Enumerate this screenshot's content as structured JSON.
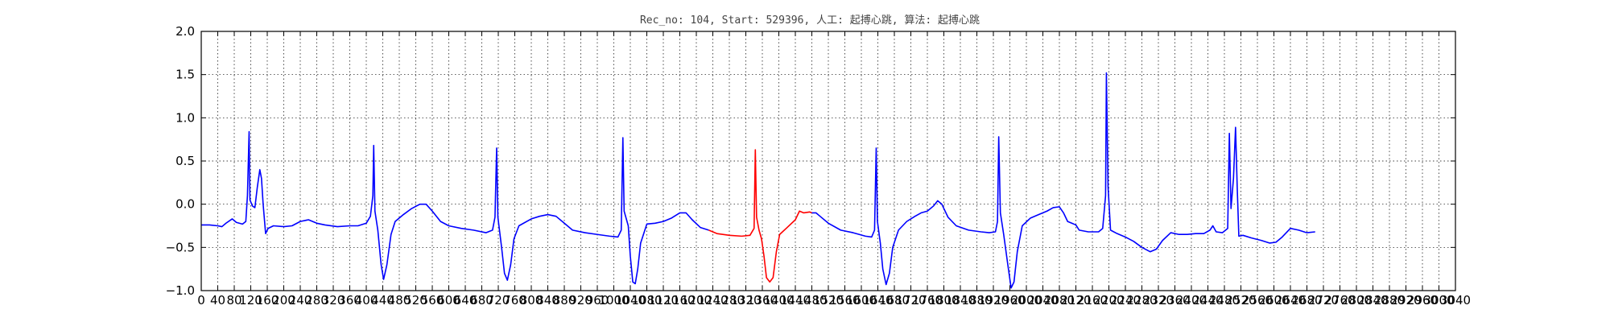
{
  "chart_data": {
    "type": "line",
    "title": "Rec_no: 104, Start: 529396, 人工: 起搏心跳, 算法: 起搏心跳",
    "xlabel": "",
    "ylabel": "",
    "xlim": [
      0,
      3040
    ],
    "ylim": [
      -1.0,
      2.0
    ],
    "grid": true,
    "y_ticks": [
      -1.0,
      -0.5,
      0.0,
      0.5,
      1.0,
      1.5,
      2.0
    ],
    "y_tick_labels": [
      "−1.0",
      "−0.5",
      "0.0",
      "0.5",
      "1.0",
      "1.5",
      "2.0"
    ],
    "x_ticks": [
      0,
      40,
      80,
      120,
      160,
      200,
      240,
      280,
      320,
      360,
      400,
      440,
      480,
      520,
      560,
      600,
      640,
      680,
      720,
      760,
      800,
      840,
      880,
      920,
      960,
      1000,
      1040,
      1080,
      1120,
      1160,
      1200,
      1240,
      1280,
      1320,
      1360,
      1400,
      1440,
      1480,
      1520,
      1560,
      1600,
      1640,
      1680,
      1720,
      1760,
      1800,
      1840,
      1880,
      1920,
      1960,
      2000,
      2040,
      2080,
      2120,
      2160,
      2200,
      2240,
      2280,
      2320,
      2360,
      2400,
      2440,
      2480,
      2520,
      2560,
      2600,
      2640,
      2680,
      2720,
      2760,
      2800,
      2840,
      2880,
      2920,
      2960,
      3000,
      3040
    ],
    "x_tick_labels": [
      "0",
      "40",
      "80",
      "120",
      "160",
      "200",
      "240",
      "280",
      "320",
      "360",
      "400",
      "440",
      "480",
      "520",
      "560",
      "600",
      "640",
      "680",
      "720",
      "760",
      "800",
      "840",
      "880",
      "920",
      "960",
      "1000",
      "1040",
      "1080",
      "1120",
      "1160",
      "1200",
      "1240",
      "1280",
      "1320",
      "1360",
      "1400",
      "1440",
      "1480",
      "1520",
      "1560",
      "1600",
      "1640",
      "1680",
      "1720",
      "1760",
      "1800",
      "1840",
      "1880",
      "1920",
      "1960",
      "2000",
      "2040",
      "2080",
      "2120",
      "2160",
      "2200",
      "2240",
      "2280",
      "2320",
      "2360",
      "2400",
      "2440",
      "2480",
      "2520",
      "2560",
      "2600",
      "2640",
      "2680",
      "2720",
      "2760",
      "2800",
      "2840",
      "2880",
      "2920",
      "2960",
      "3000",
      "3040"
    ],
    "series": [
      {
        "color": "#0000ff",
        "points": [
          [
            0,
            -0.24
          ],
          [
            20,
            -0.24
          ],
          [
            40,
            -0.25
          ],
          [
            50,
            -0.26
          ],
          [
            60,
            -0.22
          ],
          [
            75,
            -0.17
          ],
          [
            85,
            -0.21
          ],
          [
            100,
            -0.23
          ],
          [
            108,
            -0.2
          ],
          [
            112,
            0.1
          ],
          [
            116,
            0.84
          ],
          [
            118,
            0.05
          ],
          [
            124,
            -0.02
          ],
          [
            130,
            -0.04
          ],
          [
            136,
            0.2
          ],
          [
            142,
            0.4
          ],
          [
            146,
            0.3
          ],
          [
            150,
            0.0
          ],
          [
            156,
            -0.34
          ],
          [
            162,
            -0.28
          ],
          [
            175,
            -0.25
          ],
          [
            200,
            -0.26
          ],
          [
            220,
            -0.25
          ],
          [
            240,
            -0.2
          ],
          [
            260,
            -0.18
          ],
          [
            280,
            -0.22
          ],
          [
            300,
            -0.24
          ],
          [
            330,
            -0.26
          ],
          [
            360,
            -0.25
          ],
          [
            380,
            -0.25
          ],
          [
            400,
            -0.22
          ],
          [
            410,
            -0.14
          ],
          [
            416,
            0.1
          ],
          [
            418,
            0.68
          ],
          [
            421,
            -0.08
          ],
          [
            428,
            -0.3
          ],
          [
            436,
            -0.7
          ],
          [
            442,
            -0.87
          ],
          [
            450,
            -0.7
          ],
          [
            460,
            -0.35
          ],
          [
            470,
            -0.2
          ],
          [
            490,
            -0.12
          ],
          [
            510,
            -0.05
          ],
          [
            530,
            0.0
          ],
          [
            545,
            0.0
          ],
          [
            560,
            -0.08
          ],
          [
            580,
            -0.2
          ],
          [
            600,
            -0.25
          ],
          [
            630,
            -0.28
          ],
          [
            660,
            -0.3
          ],
          [
            690,
            -0.33
          ],
          [
            706,
            -0.3
          ],
          [
            712,
            -0.15
          ],
          [
            716,
            0.65
          ],
          [
            719,
            -0.15
          ],
          [
            728,
            -0.5
          ],
          [
            735,
            -0.8
          ],
          [
            742,
            -0.88
          ],
          [
            750,
            -0.7
          ],
          [
            758,
            -0.4
          ],
          [
            770,
            -0.25
          ],
          [
            800,
            -0.17
          ],
          [
            820,
            -0.14
          ],
          [
            840,
            -0.12
          ],
          [
            860,
            -0.14
          ],
          [
            880,
            -0.22
          ],
          [
            900,
            -0.3
          ],
          [
            930,
            -0.33
          ],
          [
            960,
            -0.35
          ],
          [
            990,
            -0.37
          ],
          [
            1010,
            -0.38
          ],
          [
            1018,
            -0.3
          ],
          [
            1022,
            0.77
          ],
          [
            1025,
            -0.08
          ],
          [
            1035,
            -0.25
          ],
          [
            1040,
            -0.6
          ],
          [
            1046,
            -0.9
          ],
          [
            1052,
            -0.92
          ],
          [
            1058,
            -0.75
          ],
          [
            1065,
            -0.45
          ],
          [
            1080,
            -0.23
          ],
          [
            1100,
            -0.22
          ],
          [
            1120,
            -0.2
          ],
          [
            1140,
            -0.16
          ],
          [
            1160,
            -0.1
          ],
          [
            1175,
            -0.1
          ],
          [
            1190,
            -0.18
          ],
          [
            1210,
            -0.27
          ],
          [
            1230,
            -0.3
          ]
        ]
      },
      {
        "color": "#ff0000",
        "points": [
          [
            1230,
            -0.3
          ],
          [
            1250,
            -0.34
          ],
          [
            1280,
            -0.36
          ],
          [
            1310,
            -0.37
          ],
          [
            1330,
            -0.36
          ],
          [
            1340,
            -0.28
          ],
          [
            1343,
            0.63
          ],
          [
            1346,
            -0.15
          ],
          [
            1352,
            -0.3
          ],
          [
            1358,
            -0.4
          ],
          [
            1364,
            -0.6
          ],
          [
            1370,
            -0.85
          ],
          [
            1378,
            -0.9
          ],
          [
            1386,
            -0.85
          ],
          [
            1394,
            -0.55
          ],
          [
            1402,
            -0.35
          ],
          [
            1420,
            -0.27
          ],
          [
            1440,
            -0.18
          ],
          [
            1450,
            -0.08
          ],
          [
            1460,
            -0.1
          ],
          [
            1475,
            -0.09
          ],
          [
            1480,
            -0.1
          ]
        ]
      },
      {
        "color": "#0000ff",
        "points": [
          [
            1480,
            -0.1
          ],
          [
            1490,
            -0.1
          ],
          [
            1500,
            -0.14
          ],
          [
            1520,
            -0.22
          ],
          [
            1550,
            -0.3
          ],
          [
            1580,
            -0.33
          ],
          [
            1610,
            -0.37
          ],
          [
            1625,
            -0.38
          ],
          [
            1632,
            -0.3
          ],
          [
            1636,
            0.65
          ],
          [
            1639,
            -0.2
          ],
          [
            1646,
            -0.45
          ],
          [
            1652,
            -0.75
          ],
          [
            1660,
            -0.93
          ],
          [
            1668,
            -0.8
          ],
          [
            1676,
            -0.5
          ],
          [
            1690,
            -0.3
          ],
          [
            1710,
            -0.2
          ],
          [
            1730,
            -0.14
          ],
          [
            1745,
            -0.1
          ],
          [
            1760,
            -0.08
          ],
          [
            1775,
            -0.02
          ],
          [
            1785,
            0.04
          ],
          [
            1795,
            0.0
          ],
          [
            1810,
            -0.15
          ],
          [
            1830,
            -0.25
          ],
          [
            1860,
            -0.3
          ],
          [
            1890,
            -0.32
          ],
          [
            1910,
            -0.33
          ],
          [
            1925,
            -0.32
          ],
          [
            1930,
            -0.2
          ],
          [
            1933,
            0.78
          ],
          [
            1937,
            -0.1
          ],
          [
            1945,
            -0.35
          ],
          [
            1955,
            -0.7
          ],
          [
            1963,
            -0.97
          ],
          [
            1970,
            -0.9
          ],
          [
            1978,
            -0.55
          ],
          [
            1990,
            -0.25
          ],
          [
            2010,
            -0.16
          ],
          [
            2030,
            -0.12
          ],
          [
            2050,
            -0.08
          ],
          [
            2065,
            -0.04
          ],
          [
            2080,
            -0.03
          ],
          [
            2090,
            -0.1
          ],
          [
            2100,
            -0.2
          ],
          [
            2110,
            -0.22
          ],
          [
            2120,
            -0.24
          ],
          [
            2128,
            -0.3
          ],
          [
            2150,
            -0.32
          ],
          [
            2175,
            -0.32
          ],
          [
            2185,
            -0.28
          ],
          [
            2192,
            0.1
          ],
          [
            2194,
            1.52
          ],
          [
            2198,
            0.2
          ],
          [
            2204,
            -0.3
          ],
          [
            2220,
            -0.34
          ],
          [
            2240,
            -0.38
          ],
          [
            2260,
            -0.43
          ],
          [
            2280,
            -0.5
          ],
          [
            2300,
            -0.55
          ],
          [
            2315,
            -0.52
          ],
          [
            2330,
            -0.42
          ],
          [
            2350,
            -0.33
          ],
          [
            2370,
            -0.35
          ],
          [
            2390,
            -0.35
          ],
          [
            2410,
            -0.34
          ],
          [
            2430,
            -0.34
          ],
          [
            2445,
            -0.3
          ],
          [
            2452,
            -0.25
          ],
          [
            2460,
            -0.32
          ],
          [
            2475,
            -0.33
          ],
          [
            2488,
            -0.28
          ],
          [
            2492,
            0.82
          ],
          [
            2496,
            -0.05
          ],
          [
            2502,
            0.3
          ],
          [
            2507,
            0.89
          ],
          [
            2511,
            0.2
          ],
          [
            2515,
            -0.37
          ],
          [
            2525,
            -0.36
          ],
          [
            2545,
            -0.39
          ],
          [
            2570,
            -0.42
          ],
          [
            2590,
            -0.45
          ],
          [
            2605,
            -0.44
          ],
          [
            2620,
            -0.38
          ],
          [
            2640,
            -0.28
          ],
          [
            2660,
            -0.3
          ],
          [
            2680,
            -0.33
          ],
          [
            2700,
            -0.32
          ]
        ]
      }
    ]
  }
}
